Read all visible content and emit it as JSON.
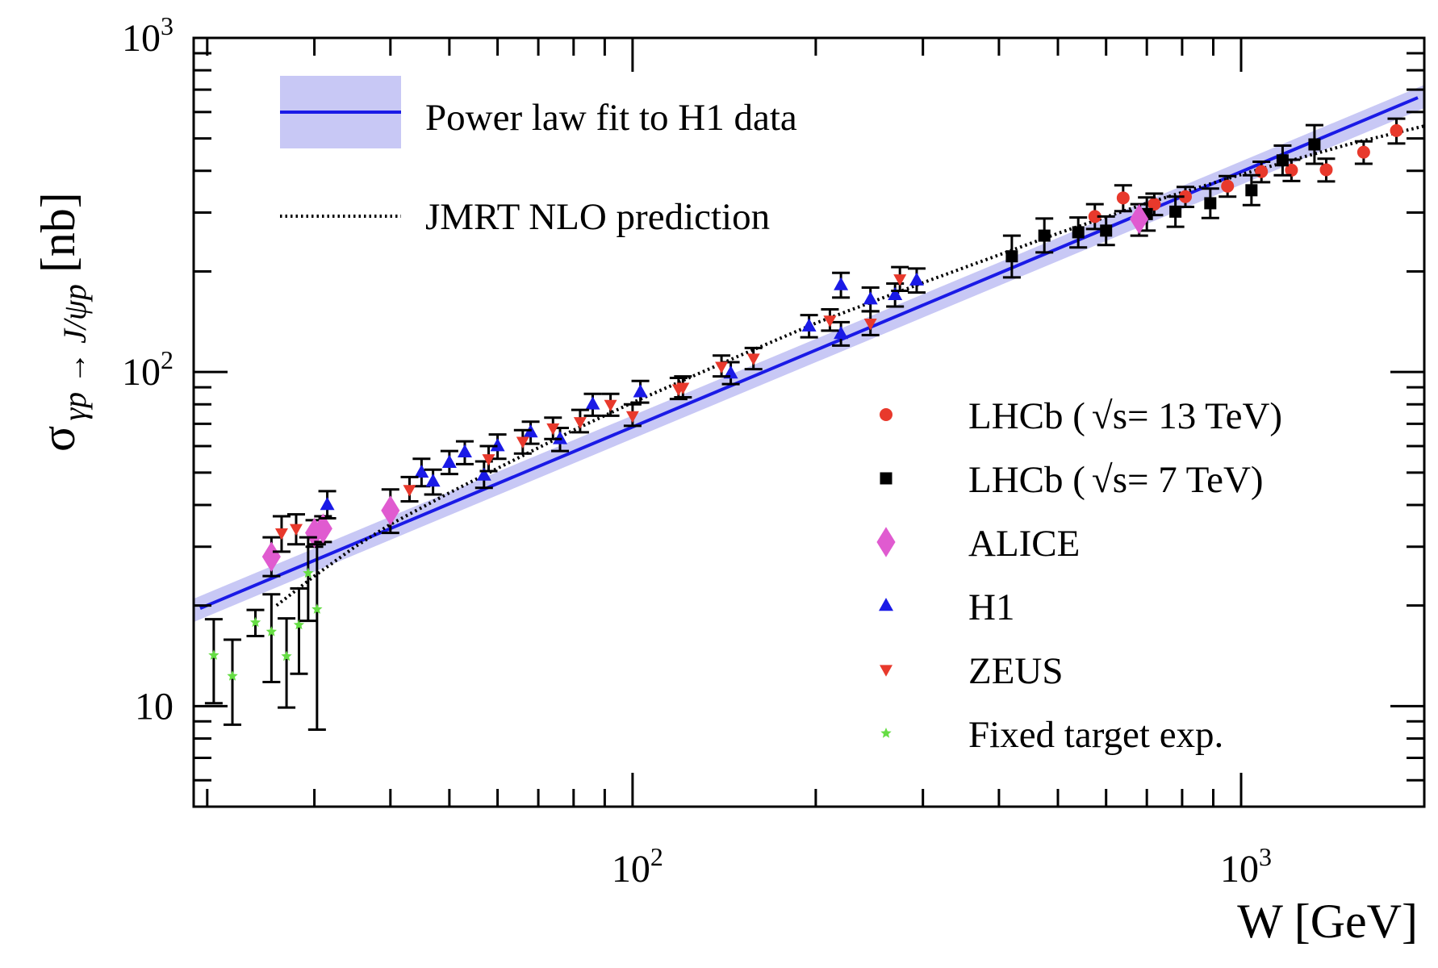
{
  "chart_data": {
    "type": "scatter",
    "xscale": "log",
    "yscale": "log",
    "xlim": [
      19,
      2000
    ],
    "ylim": [
      5,
      1000
    ],
    "xlabel": "W [GeV]",
    "ylabel": {
      "sigma": "σ",
      "subscript": "γp → J/ψp",
      "unit": "[nb]"
    },
    "x_ticks": [
      {
        "value": 100,
        "base": "10",
        "exp": "2"
      },
      {
        "value": 1000,
        "base": "10",
        "exp": "3"
      }
    ],
    "y_ticks": [
      {
        "value": 10,
        "label": "10",
        "base": "10",
        "exp": ""
      },
      {
        "value": 100,
        "label": "",
        "base": "10",
        "exp": "2"
      },
      {
        "value": 1000,
        "label": "",
        "base": "10",
        "exp": "3"
      }
    ],
    "fit": {
      "name": "Power law fit to H1 data",
      "color": "#1a1ae6",
      "band_color": "#c8c8f5",
      "x": [
        19,
        2000
      ],
      "y": [
        19.4,
        670
      ],
      "band_rel": 0.08
    },
    "prediction": {
      "name": "JMRT NLO prediction",
      "x": [
        26,
        30,
        35,
        40,
        50,
        60,
        80,
        100,
        150,
        200,
        300,
        500,
        700,
        1000,
        1500,
        2000
      ],
      "y": [
        20,
        24.5,
        30,
        35,
        43.5,
        51.5,
        67,
        81,
        112,
        140,
        185,
        260,
        320,
        390,
        480,
        545
      ]
    },
    "series": [
      {
        "name": "LHCb (√s= 13 TeV)",
        "legend_prefix": "LHCb (",
        "legend_sqrt": "√s",
        "legend_suffix": "= 13 TeV)",
        "marker": "circle",
        "color": "#e8392c",
        "points": [
          {
            "x": 575,
            "y": 292,
            "lo": 268,
            "hi": 318
          },
          {
            "x": 640,
            "y": 332,
            "lo": 303,
            "hi": 362
          },
          {
            "x": 720,
            "y": 318,
            "lo": 295,
            "hi": 342
          },
          {
            "x": 810,
            "y": 335,
            "lo": 312,
            "hi": 358
          },
          {
            "x": 950,
            "y": 360,
            "lo": 335,
            "hi": 386
          },
          {
            "x": 1080,
            "y": 398,
            "lo": 370,
            "hi": 426
          },
          {
            "x": 1210,
            "y": 402,
            "lo": 373,
            "hi": 432
          },
          {
            "x": 1380,
            "y": 403,
            "lo": 372,
            "hi": 435
          },
          {
            "x": 1590,
            "y": 455,
            "lo": 420,
            "hi": 490
          },
          {
            "x": 1800,
            "y": 528,
            "lo": 483,
            "hi": 573
          }
        ]
      },
      {
        "name": "LHCb (√s= 7 TeV)",
        "legend_prefix": "LHCb (",
        "legend_sqrt": "√s",
        "legend_suffix": "= 7 TeV)",
        "marker": "square",
        "color": "#000000",
        "points": [
          {
            "x": 420,
            "y": 222,
            "lo": 192,
            "hi": 256
          },
          {
            "x": 475,
            "y": 256,
            "lo": 228,
            "hi": 288
          },
          {
            "x": 540,
            "y": 262,
            "lo": 236,
            "hi": 290
          },
          {
            "x": 600,
            "y": 265,
            "lo": 240,
            "hi": 292
          },
          {
            "x": 700,
            "y": 297,
            "lo": 265,
            "hi": 333
          },
          {
            "x": 780,
            "y": 302,
            "lo": 272,
            "hi": 335
          },
          {
            "x": 890,
            "y": 320,
            "lo": 289,
            "hi": 354
          },
          {
            "x": 1040,
            "y": 350,
            "lo": 316,
            "hi": 388
          },
          {
            "x": 1170,
            "y": 430,
            "lo": 388,
            "hi": 476
          },
          {
            "x": 1320,
            "y": 480,
            "lo": 420,
            "hi": 548
          }
        ]
      },
      {
        "name": "ALICE",
        "marker": "diamond",
        "color": "#e05bd0",
        "points": [
          {
            "x": 25.5,
            "y": 28,
            "lo": 24.5,
            "hi": 32
          },
          {
            "x": 30,
            "y": 33,
            "lo": 30,
            "hi": 36
          },
          {
            "x": 31,
            "y": 34,
            "lo": 31,
            "hi": 37
          },
          {
            "x": 40,
            "y": 38.5,
            "lo": 33,
            "hi": 44.5
          },
          {
            "x": 680,
            "y": 287,
            "lo": 256,
            "hi": 318
          }
        ]
      },
      {
        "name": "H1",
        "marker": "triangle-up",
        "color": "#1a1ae6",
        "points": [
          {
            "x": 31.5,
            "y": 40,
            "lo": 36.5,
            "hi": 44
          },
          {
            "x": 45,
            "y": 50,
            "lo": 45.5,
            "hi": 55
          },
          {
            "x": 47,
            "y": 47,
            "lo": 43,
            "hi": 51
          },
          {
            "x": 50,
            "y": 53.5,
            "lo": 49.5,
            "hi": 58
          },
          {
            "x": 53,
            "y": 57.5,
            "lo": 53,
            "hi": 62
          },
          {
            "x": 57,
            "y": 49,
            "lo": 45,
            "hi": 54
          },
          {
            "x": 60,
            "y": 60,
            "lo": 55,
            "hi": 65
          },
          {
            "x": 68,
            "y": 66,
            "lo": 61,
            "hi": 71
          },
          {
            "x": 76,
            "y": 63,
            "lo": 58,
            "hi": 68
          },
          {
            "x": 86,
            "y": 80,
            "lo": 74,
            "hi": 86
          },
          {
            "x": 103,
            "y": 87,
            "lo": 81,
            "hi": 94
          },
          {
            "x": 145,
            "y": 99,
            "lo": 92,
            "hi": 107
          },
          {
            "x": 195,
            "y": 137,
            "lo": 127,
            "hi": 148
          },
          {
            "x": 220,
            "y": 130,
            "lo": 120,
            "hi": 141
          },
          {
            "x": 220,
            "y": 182,
            "lo": 167,
            "hi": 198
          },
          {
            "x": 246,
            "y": 165,
            "lo": 152,
            "hi": 179
          },
          {
            "x": 270,
            "y": 170,
            "lo": 157,
            "hi": 184
          },
          {
            "x": 293,
            "y": 188,
            "lo": 173,
            "hi": 204
          }
        ]
      },
      {
        "name": "ZEUS",
        "marker": "triangle-down",
        "color": "#e8392c",
        "points": [
          {
            "x": 26.5,
            "y": 33,
            "lo": 29,
            "hi": 37
          },
          {
            "x": 28,
            "y": 34,
            "lo": 30.5,
            "hi": 37.5
          },
          {
            "x": 43,
            "y": 44.5,
            "lo": 41,
            "hi": 48.5
          },
          {
            "x": 58,
            "y": 55,
            "lo": 50.5,
            "hi": 60
          },
          {
            "x": 66,
            "y": 62,
            "lo": 57,
            "hi": 67
          },
          {
            "x": 74,
            "y": 68,
            "lo": 63,
            "hi": 73
          },
          {
            "x": 82,
            "y": 71,
            "lo": 66,
            "hi": 77
          },
          {
            "x": 92,
            "y": 80,
            "lo": 74,
            "hi": 86
          },
          {
            "x": 100,
            "y": 74,
            "lo": 69,
            "hi": 80
          },
          {
            "x": 119,
            "y": 89,
            "lo": 83,
            "hi": 96
          },
          {
            "x": 121,
            "y": 90,
            "lo": 84,
            "hi": 97
          },
          {
            "x": 140,
            "y": 104,
            "lo": 97,
            "hi": 112
          },
          {
            "x": 158,
            "y": 110,
            "lo": 102,
            "hi": 118
          },
          {
            "x": 211,
            "y": 143,
            "lo": 133,
            "hi": 154
          },
          {
            "x": 246,
            "y": 140,
            "lo": 129,
            "hi": 152
          },
          {
            "x": 275,
            "y": 190,
            "lo": 175,
            "hi": 206
          }
        ]
      },
      {
        "name": "Fixed target exp.",
        "marker": "star",
        "color": "#66dd44",
        "points": [
          {
            "x": 20.5,
            "y": 14.2,
            "lo": 10.2,
            "hi": 18.2
          },
          {
            "x": 22,
            "y": 12.3,
            "lo": 8.8,
            "hi": 15.8
          },
          {
            "x": 24,
            "y": 17.8,
            "lo": 16.2,
            "hi": 19.4
          },
          {
            "x": 25.5,
            "y": 16.7,
            "lo": 11.8,
            "hi": 21.6
          },
          {
            "x": 27,
            "y": 14.1,
            "lo": 9.9,
            "hi": 18.3
          },
          {
            "x": 28.3,
            "y": 17.5,
            "lo": 12.5,
            "hi": 22.5
          },
          {
            "x": 29.3,
            "y": 25,
            "lo": 18,
            "hi": 32
          },
          {
            "x": 30.3,
            "y": 19.5,
            "lo": 8.5,
            "hi": 30.5
          }
        ]
      }
    ]
  }
}
